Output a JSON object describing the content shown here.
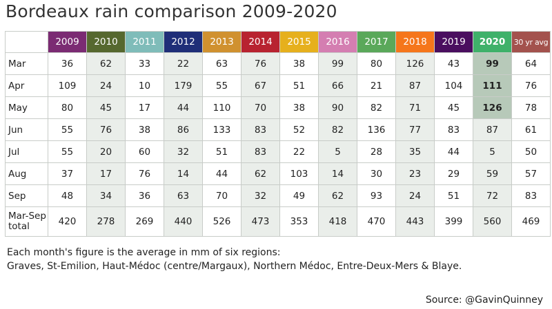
{
  "title": "Bordeaux rain comparison 2009-2020",
  "chart_data": {
    "type": "table",
    "columns": [
      {
        "label": "2009",
        "color": "#7b2b73"
      },
      {
        "label": "2010",
        "color": "#56682f"
      },
      {
        "label": "2011",
        "color": "#7fbcb9"
      },
      {
        "label": "2012",
        "color": "#1f2e78"
      },
      {
        "label": "2013",
        "color": "#d0912f"
      },
      {
        "label": "2014",
        "color": "#b82330"
      },
      {
        "label": "2015",
        "color": "#e6b01d"
      },
      {
        "label": "2016",
        "color": "#d47eb1"
      },
      {
        "label": "2017",
        "color": "#5aa85a"
      },
      {
        "label": "2018",
        "color": "#f5761b"
      },
      {
        "label": "2019",
        "color": "#4a0e5f"
      },
      {
        "label": "2020",
        "color": "#3fb16a"
      },
      {
        "label": "30 yr avg",
        "color": "#a3524d"
      }
    ],
    "rows": [
      {
        "month": "Mar",
        "values": [
          "36",
          "62",
          "33",
          "22",
          "63",
          "76",
          "38",
          "99",
          "80",
          "126",
          "43",
          "99",
          "64"
        ],
        "highlight_2020": true
      },
      {
        "month": "Apr",
        "values": [
          "109",
          "24",
          "10",
          "179",
          "55",
          "67",
          "51",
          "66",
          "21",
          "87",
          "104",
          "111",
          "76"
        ],
        "highlight_2020": true
      },
      {
        "month": "May",
        "values": [
          "80",
          "45",
          "17",
          "44",
          "110",
          "70",
          "38",
          "90",
          "82",
          "71",
          "45",
          "126",
          "78"
        ],
        "highlight_2020": true
      },
      {
        "month": "Jun",
        "values": [
          "55",
          "76",
          "38",
          "86",
          "133",
          "83",
          "52",
          "82",
          "136",
          "77",
          "83",
          "87",
          "61"
        ],
        "highlight_2020": false
      },
      {
        "month": "Jul",
        "values": [
          "55",
          "20",
          "60",
          "32",
          "51",
          "83",
          "22",
          "5",
          "28",
          "35",
          "44",
          "5",
          "50"
        ],
        "highlight_2020": false
      },
      {
        "month": "Aug",
        "values": [
          "37",
          "17",
          "76",
          "14",
          "44",
          "62",
          "103",
          "14",
          "30",
          "23",
          "29",
          "59",
          "57"
        ],
        "highlight_2020": false
      },
      {
        "month": "Sep",
        "values": [
          "48",
          "34",
          "36",
          "63",
          "70",
          "32",
          "49",
          "62",
          "93",
          "24",
          "51",
          "72",
          "83"
        ],
        "highlight_2020": false
      }
    ],
    "total_row": {
      "label_line1": "Mar-Sep",
      "label_line2": "total",
      "values": [
        "420",
        "278",
        "269",
        "440",
        "526",
        "473",
        "353",
        "418",
        "470",
        "443",
        "399",
        "560",
        "469"
      ]
    },
    "highlight_color": "#b7c9b9",
    "shade_color": "#eaeeea"
  },
  "note": {
    "line1": "Each month's figure is the average in mm of six regions:",
    "line2": "Graves, St-Emilion, Haut-Médoc (centre/Margaux), Northern Médoc, Entre-Deux-Mers & Blaye."
  },
  "source": "Source: @GavinQuinney"
}
